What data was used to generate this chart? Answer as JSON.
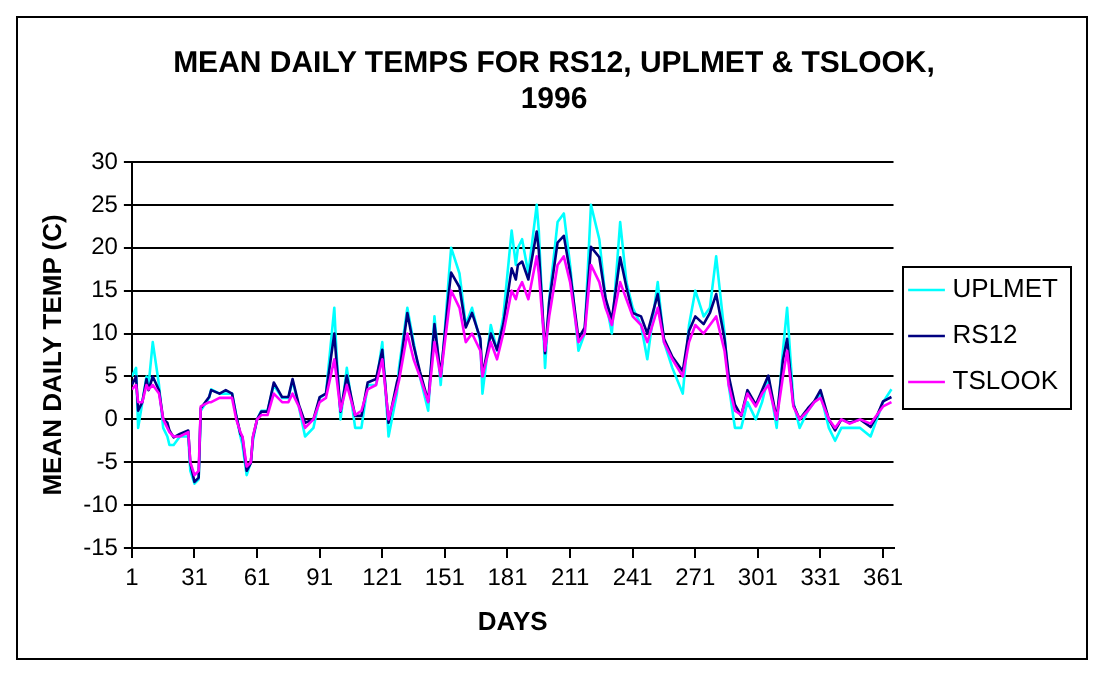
{
  "chart_data": {
    "type": "line",
    "title": [
      "MEAN DAILY TEMPS FOR RS12, UPLMET & TSLOOK,",
      "1996"
    ],
    "xlabel": "DAYS",
    "ylabel": "MEAN DAILY TEMP (C)",
    "x": [
      1,
      3,
      4,
      6,
      8,
      9,
      11,
      14,
      16,
      18,
      19,
      21,
      24,
      28,
      29,
      31,
      33,
      34,
      38,
      39,
      43,
      46,
      49,
      51,
      53,
      54,
      56,
      58,
      59,
      61,
      63,
      66,
      69,
      73,
      76,
      78,
      81,
      84,
      88,
      91,
      94,
      98,
      99,
      101,
      104,
      108,
      111,
      114,
      118,
      121,
      124,
      128,
      129,
      133,
      136,
      139,
      143,
      146,
      149,
      153,
      154,
      158,
      161,
      164,
      168,
      169,
      173,
      176,
      179,
      183,
      185,
      186,
      188,
      191,
      195,
      196,
      199,
      201,
      205,
      208,
      211,
      215,
      218,
      221,
      225,
      228,
      231,
      235,
      238,
      241,
      245,
      248,
      253,
      256,
      260,
      265,
      268,
      271,
      275,
      278,
      281,
      285,
      287,
      290,
      293,
      296,
      300,
      303,
      306,
      310,
      313,
      315,
      318,
      321,
      325,
      328,
      331,
      335,
      338,
      341,
      345,
      350,
      355,
      358,
      361,
      365
    ],
    "series": [
      {
        "name": "UPLMET",
        "color": "#00ffff",
        "values": [
          5,
          6,
          -1,
          2,
          5,
          4,
          9,
          4,
          -1,
          -2,
          -3,
          -3,
          -2,
          -2,
          -6,
          -7.5,
          -7,
          1,
          2.5,
          3.5,
          3,
          3,
          3,
          0.5,
          -2,
          -3,
          -6.5,
          -5,
          -2.5,
          0,
          1,
          1,
          4,
          2.5,
          2.5,
          4.5,
          1.5,
          -2,
          -1,
          2.5,
          3,
          13,
          8,
          0,
          6,
          -1,
          -1,
          4,
          4,
          9,
          -2,
          3,
          6,
          13,
          9,
          5,
          1,
          12,
          4,
          17,
          20,
          17,
          11,
          13,
          9,
          3,
          11,
          8,
          12,
          22,
          18,
          20,
          21,
          17,
          25,
          22,
          6,
          14,
          23,
          24,
          18,
          8,
          10,
          25,
          21,
          14,
          10,
          23,
          16,
          13,
          11,
          7,
          16,
          9,
          6,
          3,
          11,
          15,
          12,
          13,
          19,
          10,
          4,
          -1,
          -1,
          2,
          0,
          2,
          5,
          -1,
          8,
          13,
          2,
          -1,
          1,
          2,
          3,
          -1,
          -2.5,
          -1,
          -1,
          -1,
          -2,
          0,
          2,
          3.5
        ]
      },
      {
        "name": "RS12",
        "color": "#000080",
        "values": [
          4,
          5,
          1,
          2,
          4.7,
          3.4,
          5,
          3.4,
          0,
          -0.4,
          -1.3,
          -2.1,
          -1.7,
          -1.3,
          -5.1,
          -7.3,
          -6.8,
          1.3,
          2.6,
          3.4,
          3,
          3.4,
          3,
          0.4,
          -1.7,
          -2.1,
          -6,
          -5.1,
          -2.1,
          0,
          0.9,
          0.9,
          4.3,
          2.6,
          2.6,
          4.7,
          1.7,
          -0.4,
          0,
          2.6,
          3,
          10,
          6.9,
          0.9,
          5.1,
          0.4,
          0.4,
          4.3,
          4.7,
          8.1,
          -0.4,
          4.3,
          5.1,
          12.4,
          8.6,
          5.6,
          2.1,
          11.1,
          5.1,
          15,
          17.1,
          15.4,
          10.7,
          12.4,
          9.4,
          5.1,
          10,
          8.1,
          11.1,
          17.6,
          16.3,
          18,
          18.4,
          16.3,
          21.9,
          19.7,
          7.7,
          13.7,
          20.6,
          21.4,
          17.1,
          9.4,
          10.7,
          20.1,
          18.9,
          14.1,
          11.6,
          18.9,
          15.4,
          12.4,
          12,
          10,
          14.6,
          9.4,
          7.3,
          5.6,
          10.3,
          12,
          11.1,
          12.4,
          14.6,
          9.4,
          5.1,
          1.7,
          0.4,
          3.4,
          1.7,
          3.4,
          5.1,
          0,
          6.9,
          9.4,
          1.7,
          0,
          1.3,
          2.1,
          3.4,
          0,
          -1.3,
          0,
          -0.4,
          0,
          -0.9,
          0.4,
          2.1,
          2.6
        ]
      },
      {
        "name": "TSLOOK",
        "color": "#ff00ff",
        "values": [
          3.5,
          4,
          2,
          2,
          4,
          3.5,
          4,
          3,
          0,
          -1,
          -1.5,
          -2,
          -2,
          -1.5,
          -5,
          -6.5,
          -6,
          1.5,
          2,
          2,
          2.5,
          2.5,
          2.5,
          0,
          -1.5,
          -2,
          -5.5,
          -5,
          -2,
          0,
          0.5,
          0.5,
          3,
          2,
          2,
          3,
          1.5,
          -1,
          0,
          2,
          2.5,
          7,
          5,
          1,
          4,
          0.5,
          1,
          3.5,
          4,
          7,
          0,
          3.5,
          4.5,
          10,
          7,
          5,
          2,
          9,
          5,
          13,
          15,
          13,
          9,
          10,
          8,
          5,
          9,
          7,
          10,
          15,
          14,
          15,
          16,
          14,
          19,
          17,
          8,
          12,
          18,
          19,
          16,
          9,
          10,
          18,
          16,
          13,
          11,
          16,
          14,
          12,
          11,
          9,
          13,
          9,
          7,
          5,
          9,
          11,
          10,
          11,
          12,
          8,
          4,
          1,
          0.5,
          3,
          1.5,
          3,
          4,
          0,
          5,
          8,
          1.5,
          0,
          1,
          2,
          2.5,
          0,
          -1,
          0,
          -0.5,
          0,
          -0.5,
          0.5,
          1.5,
          2
        ]
      }
    ],
    "xlim": [
      1,
      366
    ],
    "xticks": [
      1,
      31,
      61,
      91,
      121,
      151,
      181,
      211,
      241,
      271,
      301,
      331,
      361
    ],
    "ylim": [
      -15,
      30
    ],
    "yticks": [
      -15,
      -10,
      -5,
      0,
      5,
      10,
      15,
      20,
      25,
      30
    ],
    "grid": "y",
    "legend": "right",
    "marker": "none",
    "line_style": "solid"
  }
}
